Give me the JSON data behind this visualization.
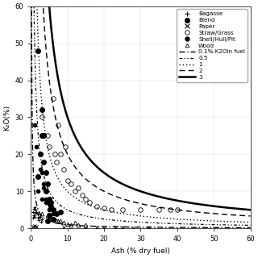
{
  "xlabel": "Ash (% dry fuel)",
  "ylabel": "K₂O(%)",
  "xlim": [
    0,
    60
  ],
  "ylim": [
    0,
    60
  ],
  "yticks": [
    0,
    10,
    20,
    30,
    40,
    50,
    60
  ],
  "xticks": [
    0,
    10,
    20,
    30,
    40,
    50,
    60
  ],
  "curve_k2o_values": [
    0.1,
    0.5,
    1,
    2,
    3
  ],
  "curve_styles": [
    {
      "dashes": [
        5,
        2,
        1,
        2
      ],
      "lw": 1.0,
      "label": "0.1% K2Oin fuel"
    },
    {
      "dashes": [
        3,
        2,
        1,
        2,
        1,
        2
      ],
      "lw": 0.9,
      "label": "0.5"
    },
    {
      "dashes": [
        1,
        2,
        1,
        2
      ],
      "lw": 1.0,
      "label": "1"
    },
    {
      "dashes": [
        5,
        3
      ],
      "lw": 1.0,
      "label": "2"
    },
    {
      "dashes": [],
      "lw": 1.8,
      "label": "3"
    }
  ],
  "scatter_bagasse_x": [
    0.5,
    0.7,
    1.0,
    1.2,
    1.5,
    1.8,
    2.0,
    2.3,
    2.5,
    3.0,
    0.8,
    1.3,
    1.8,
    2.2,
    0.6,
    1.1,
    2.8
  ],
  "scatter_bagasse_y": [
    4.5,
    5.2,
    5.8,
    5.0,
    4.5,
    4.0,
    3.8,
    3.2,
    3.0,
    2.5,
    3.5,
    4.2,
    2.8,
    2.2,
    2.8,
    3.0,
    1.8
  ],
  "scatter_blend_x": [
    2.0,
    3.0,
    3.5,
    4.0,
    5.0,
    5.5,
    6.0,
    7.0,
    4.0,
    3.0,
    2.5,
    1.8,
    8.0,
    5.0,
    6.0,
    4.5,
    3.5,
    4.5,
    5.5
  ],
  "scatter_blend_y": [
    48,
    32,
    25,
    10,
    8,
    6,
    5,
    4,
    15,
    25,
    20,
    14,
    4.5,
    3.5,
    2.5,
    2.0,
    18,
    12,
    7
  ],
  "scatter_paper_x": [
    0.5,
    1.0,
    1.5,
    9.0,
    15.0,
    18.0,
    25.0,
    28.0,
    32.0,
    20.0,
    23.0
  ],
  "scatter_paper_y": [
    0.5,
    0.8,
    0.4,
    0.2,
    0.1,
    0.25,
    0.35,
    0.1,
    0.25,
    0.15,
    0.2
  ],
  "scatter_straw_x": [
    3.0,
    4.5,
    5.0,
    6.5,
    7.0,
    8.0,
    9.0,
    10.0,
    11.0,
    12.0,
    14.0,
    15.0,
    18.0,
    20.0,
    22.0,
    25.0,
    30.0,
    38.0,
    40.0,
    6.0,
    7.5,
    9.5,
    13.0,
    16.0,
    35.0
  ],
  "scatter_straw_y": [
    30,
    25,
    22,
    20,
    18,
    20,
    16,
    13,
    12,
    10,
    9,
    8,
    6,
    5.5,
    5,
    5,
    5,
    5,
    5,
    35,
    28,
    22,
    11,
    7,
    5
  ],
  "scatter_shell_x": [
    1.0,
    2.0,
    3.0,
    4.0,
    5.0,
    6.0,
    3.0,
    4.0,
    5.0,
    2.5,
    3.5,
    1.5,
    2.5,
    4.0,
    3.5
  ],
  "scatter_shell_y": [
    28,
    10,
    8,
    7,
    5,
    4,
    15,
    10,
    6.5,
    20,
    12,
    22,
    16,
    8,
    11
  ],
  "scatter_wood_x": [
    3.0,
    4.5,
    5.0,
    6.0,
    7.0,
    8.0,
    9.0,
    10.0,
    11.0,
    13.0,
    15.0,
    5.5,
    7.5,
    12.0
  ],
  "scatter_wood_y": [
    4.0,
    3.5,
    3.0,
    2.5,
    2.0,
    2.0,
    1.5,
    1.2,
    1.0,
    1.0,
    1.0,
    3.0,
    2.0,
    1.5
  ]
}
